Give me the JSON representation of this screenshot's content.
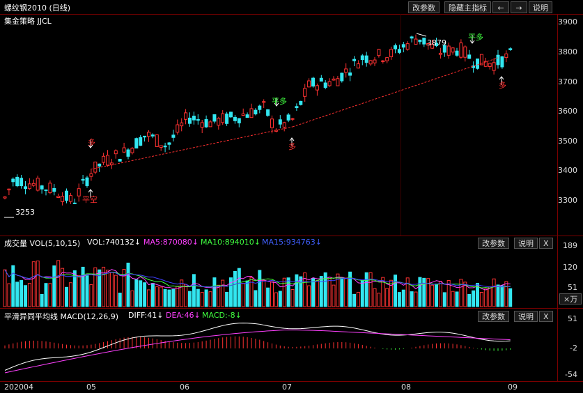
{
  "window": {
    "title": "螺纹钢2010 (日线)",
    "buttons": {
      "params": "改参数",
      "hide_indicator": "隐藏主指标",
      "left": "←",
      "right": "→",
      "help": "说明"
    }
  },
  "strategy": {
    "label": "集金策略 JJCL"
  },
  "price_axis": [
    "3900",
    "3800",
    "3700",
    "3600",
    "3500",
    "3400",
    "3300"
  ],
  "annotations": {
    "low": "3253",
    "high": "3879",
    "long1": "多",
    "close_short": "平空",
    "flat1": "平多",
    "long2": "多",
    "flat2": "平多",
    "long3": "多"
  },
  "volume_panel": {
    "title": "成交量 VOL(5,10,15)",
    "vol": "VOL:740132↓",
    "ma5": "MA5:870080↓",
    "ma10": "MA10:894010↓",
    "ma15": "MA15:934763↓",
    "btn_params": "改参数",
    "btn_help": "说明",
    "btn_close": "X",
    "axis": [
      "189",
      "120",
      "51"
    ],
    "unit": "×万"
  },
  "macd_panel": {
    "title": "平滑异同平均线 MACD(12,26,9)",
    "diff": "DIFF:41↓",
    "dea": "DEA:46↓",
    "macd": "MACD:-8↓",
    "btn_params": "改参数",
    "btn_help": "说明",
    "btn_close": "X",
    "axis": [
      "51",
      "-2",
      "-54"
    ]
  },
  "date_axis": [
    "202004",
    "05",
    "06",
    "07",
    "08",
    "09"
  ],
  "colors": {
    "up": "#ff3232",
    "down": "#32e6f0",
    "grid": "#7a0000",
    "ma5": "#ff40ff",
    "ma10": "#40ff40",
    "ma15": "#4040ff",
    "diff": "#ffffff",
    "dea": "#ff40ff",
    "trend": "#ff3030"
  }
}
